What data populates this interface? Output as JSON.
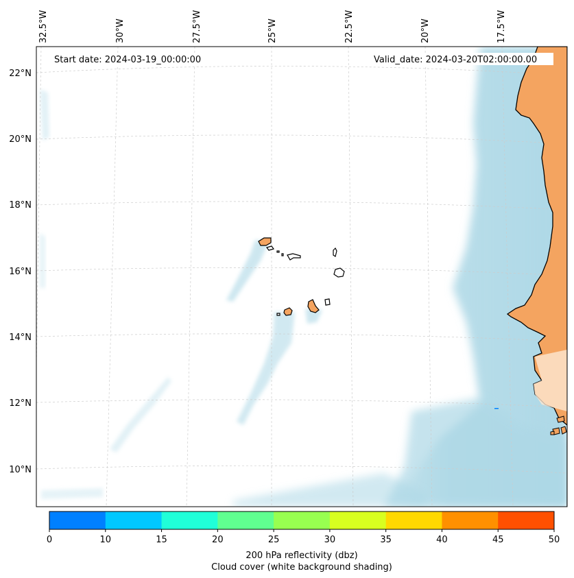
{
  "header": {
    "start_date": "Start date: 2024-03-19_00:00:00",
    "valid_date": "Valid_date: 2024-03-20T02:00:00.00"
  },
  "axes": {
    "longitude_labels": [
      "32.5°W",
      "30°W",
      "27.5°W",
      "25°W",
      "22.5°W",
      "20°W",
      "17.5°W"
    ],
    "latitude_labels": [
      "22°N",
      "20°N",
      "18°N",
      "16°N",
      "14°N",
      "12°N",
      "10°N"
    ]
  },
  "colorbar": {
    "ticks": [
      "0",
      "10",
      "15",
      "20",
      "25",
      "30",
      "35",
      "40",
      "45",
      "50"
    ],
    "colors": [
      "#0080ff",
      "#00c8ff",
      "#20ffd8",
      "#60ff90",
      "#98ff50",
      "#d8ff20",
      "#ffd800",
      "#ff9000",
      "#ff5000"
    ],
    "label_line1": "200 hPa reflectivity (dbz)",
    "label_line2": "Cloud cover (white background shading)"
  },
  "colors": {
    "land": "#f4a460",
    "cloud": "#add8e6",
    "coastline": "#000000",
    "gridline": "#cccccc"
  }
}
